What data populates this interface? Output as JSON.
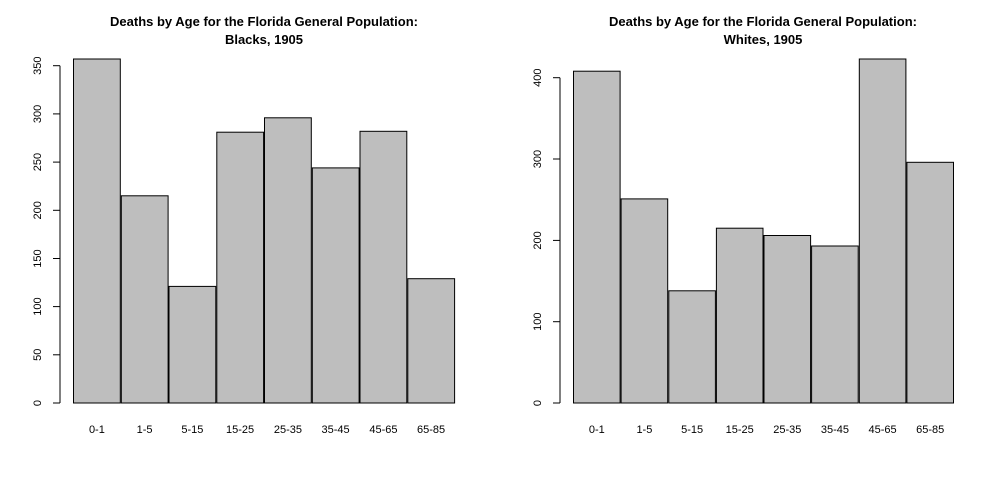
{
  "chart_data": [
    {
      "type": "bar",
      "title": "Deaths by Age for the Florida General Population:",
      "subtitle": "Blacks, 1905",
      "categories": [
        "0-1",
        "1-5",
        "5-15",
        "15-25",
        "25-35",
        "35-45",
        "45-65",
        "65-85"
      ],
      "values": [
        357,
        215,
        121,
        281,
        296,
        244,
        282,
        129
      ],
      "yticks": [
        0,
        50,
        100,
        150,
        200,
        250,
        300,
        350
      ],
      "ylim": [
        0,
        357
      ],
      "bar_color": "#bebebe",
      "grid": false
    },
    {
      "type": "bar",
      "title": "Deaths by Age for the Florida General Population:",
      "subtitle": "Whites, 1905",
      "categories": [
        "0-1",
        "1-5",
        "5-15",
        "15-25",
        "25-35",
        "35-45",
        "45-65",
        "65-85"
      ],
      "values": [
        408,
        251,
        138,
        215,
        206,
        193,
        423,
        296
      ],
      "yticks": [
        0,
        100,
        200,
        300,
        400
      ],
      "ylim": [
        0,
        423
      ],
      "bar_color": "#bebebe",
      "grid": false
    }
  ]
}
